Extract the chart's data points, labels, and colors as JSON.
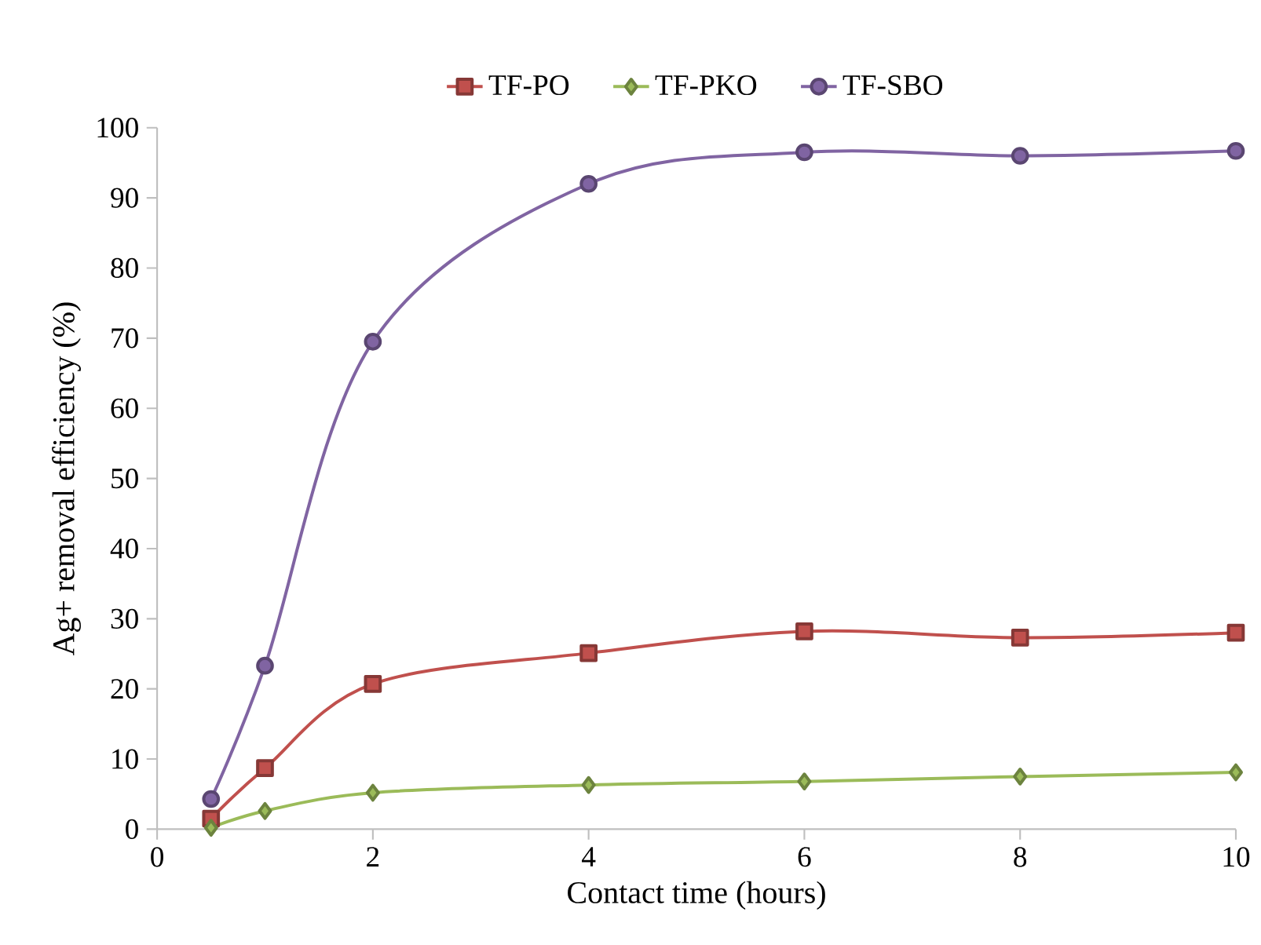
{
  "chart_data": {
    "type": "line",
    "xlabel": "Contact time (hours)",
    "ylabel": "Ag+ removal efficiency (%)",
    "x": [
      0.5,
      1,
      2,
      4,
      6,
      8,
      10
    ],
    "series": [
      {
        "name": "TF-PO",
        "color": "#c0504d",
        "marker": "square",
        "values": [
          1.5,
          8.7,
          20.7,
          25.1,
          28.2,
          27.3,
          28.0
        ]
      },
      {
        "name": "TF-PKO",
        "color": "#9bbb59",
        "marker": "diamond",
        "values": [
          0.2,
          2.6,
          5.2,
          6.3,
          6.8,
          7.5,
          8.1
        ]
      },
      {
        "name": "TF-SBO",
        "color": "#8064a2",
        "marker": "circle",
        "values": [
          4.3,
          23.3,
          69.5,
          92.0,
          96.5,
          96.0,
          96.7
        ]
      }
    ],
    "xlim": [
      0,
      10
    ],
    "ylim": [
      0,
      100
    ],
    "xticks": [
      0,
      2,
      4,
      6,
      8,
      10
    ],
    "yticks": [
      0,
      10,
      20,
      30,
      40,
      50,
      60,
      70,
      80,
      90,
      100
    ],
    "grid": false,
    "legend": "top"
  }
}
